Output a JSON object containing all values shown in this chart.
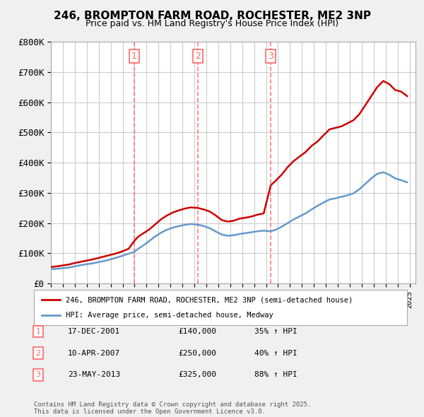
{
  "title": "246, BROMPTON FARM ROAD, ROCHESTER, ME2 3NP",
  "subtitle": "Price paid vs. HM Land Registry's House Price Index (HPI)",
  "ylabel": "",
  "ylim": [
    0,
    800000
  ],
  "yticks": [
    0,
    100000,
    200000,
    300000,
    400000,
    500000,
    600000,
    700000,
    800000
  ],
  "ytick_labels": [
    "£0",
    "£100K",
    "£200K",
    "£300K",
    "£400K",
    "£500K",
    "£600K",
    "£700K",
    "£800K"
  ],
  "xlim_start": 1995.0,
  "xlim_end": 2025.5,
  "bg_color": "#f0f0f0",
  "plot_bg_color": "#ffffff",
  "red_color": "#cc0000",
  "blue_color": "#6699cc",
  "grid_color": "#cccccc",
  "transaction_line_color": "#ff6666",
  "transactions": [
    {
      "num": 1,
      "year": 2001.96,
      "price": 140000,
      "date": "17-DEC-2001",
      "pct": "35%",
      "dir": "↑"
    },
    {
      "num": 2,
      "year": 2007.28,
      "price": 250000,
      "date": "10-APR-2007",
      "pct": "40%",
      "dir": "↑"
    },
    {
      "num": 3,
      "year": 2013.39,
      "price": 325000,
      "date": "23-MAY-2013",
      "pct": "88%",
      "dir": "↑"
    }
  ],
  "legend_label_red": "246, BROMPTON FARM ROAD, ROCHESTER, ME2 3NP (semi-detached house)",
  "legend_label_blue": "HPI: Average price, semi-detached house, Medway",
  "footer": "Contains HM Land Registry data © Crown copyright and database right 2025.\nThis data is licensed under the Open Government Licence v3.0.",
  "red_x": [
    1995.0,
    1995.5,
    1996.0,
    1996.5,
    1997.0,
    1997.5,
    1998.0,
    1998.5,
    1999.0,
    1999.5,
    2000.0,
    2000.5,
    2001.0,
    2001.5,
    2001.96,
    2002.3,
    2002.8,
    2003.2,
    2003.7,
    2004.2,
    2004.7,
    2005.2,
    2005.7,
    2006.2,
    2006.7,
    2007.28,
    2007.8,
    2008.3,
    2008.8,
    2009.3,
    2009.8,
    2010.3,
    2010.8,
    2011.3,
    2011.8,
    2012.3,
    2012.8,
    2013.39,
    2013.8,
    2014.3,
    2014.8,
    2015.3,
    2015.8,
    2016.3,
    2016.8,
    2017.3,
    2017.8,
    2018.3,
    2018.8,
    2019.3,
    2019.8,
    2020.3,
    2020.8,
    2021.3,
    2021.8,
    2022.3,
    2022.8,
    2023.3,
    2023.8,
    2024.3,
    2024.8
  ],
  "red_y": [
    55000,
    57000,
    60000,
    63000,
    68000,
    72000,
    76000,
    80000,
    85000,
    90000,
    95000,
    100000,
    107000,
    115000,
    140000,
    155000,
    168000,
    178000,
    195000,
    212000,
    225000,
    235000,
    242000,
    248000,
    252000,
    250000,
    245000,
    238000,
    225000,
    210000,
    205000,
    208000,
    215000,
    218000,
    222000,
    228000,
    232000,
    325000,
    340000,
    360000,
    385000,
    405000,
    420000,
    435000,
    455000,
    470000,
    490000,
    510000,
    515000,
    520000,
    530000,
    540000,
    560000,
    590000,
    620000,
    650000,
    670000,
    660000,
    640000,
    635000,
    620000
  ],
  "blue_x": [
    1995.0,
    1995.5,
    1996.0,
    1996.5,
    1997.0,
    1997.5,
    1998.0,
    1998.5,
    1999.0,
    1999.5,
    2000.0,
    2000.5,
    2001.0,
    2001.5,
    2001.96,
    2002.3,
    2002.8,
    2003.2,
    2003.7,
    2004.2,
    2004.7,
    2005.2,
    2005.7,
    2006.2,
    2006.7,
    2007.28,
    2007.8,
    2008.3,
    2008.8,
    2009.3,
    2009.8,
    2010.3,
    2010.8,
    2011.3,
    2011.8,
    2012.3,
    2012.8,
    2013.39,
    2013.8,
    2014.3,
    2014.8,
    2015.3,
    2015.8,
    2016.3,
    2016.8,
    2017.3,
    2017.8,
    2018.3,
    2018.8,
    2019.3,
    2019.8,
    2020.3,
    2020.8,
    2021.3,
    2021.8,
    2022.3,
    2022.8,
    2023.3,
    2023.8,
    2024.3,
    2024.8
  ],
  "blue_y": [
    48000,
    49000,
    51000,
    53000,
    57000,
    61000,
    64000,
    67000,
    71000,
    75000,
    80000,
    86000,
    92000,
    99000,
    104000,
    115000,
    128000,
    140000,
    155000,
    168000,
    178000,
    185000,
    190000,
    194000,
    197000,
    195000,
    190000,
    183000,
    172000,
    162000,
    158000,
    160000,
    164000,
    167000,
    170000,
    173000,
    175000,
    173000,
    178000,
    188000,
    200000,
    212000,
    222000,
    232000,
    245000,
    257000,
    268000,
    278000,
    282000,
    287000,
    292000,
    298000,
    312000,
    330000,
    348000,
    363000,
    368000,
    360000,
    348000,
    342000,
    335000
  ]
}
